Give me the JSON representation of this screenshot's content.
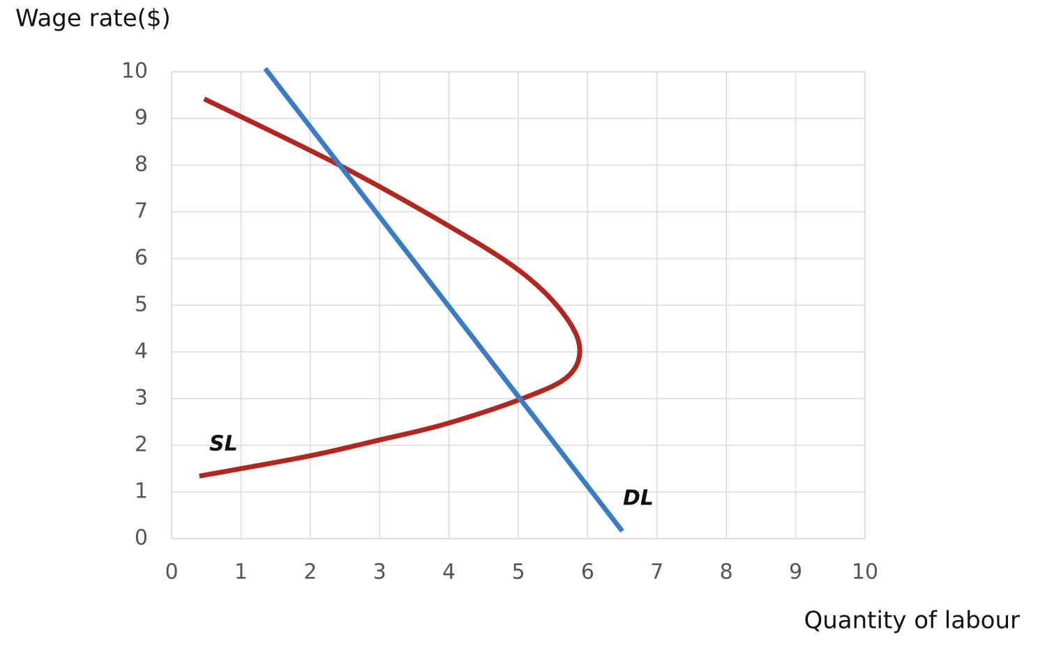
{
  "chart_data": {
    "type": "line",
    "y_label": "Wage rate($)",
    "x_label": "Quantity of labour",
    "xlim": [
      0,
      10
    ],
    "ylim": [
      0,
      10
    ],
    "xticks": [
      0,
      1,
      2,
      3,
      4,
      5,
      6,
      7,
      8,
      9,
      10
    ],
    "yticks": [
      0,
      1,
      2,
      3,
      4,
      5,
      6,
      7,
      8,
      9,
      10
    ],
    "grid": true,
    "series": [
      {
        "name": "SL",
        "color": "#b3261e",
        "x": [
          0.47,
          2.42,
          3.96,
          4.97,
          5.57,
          5.88,
          5.72,
          5.04,
          3.96,
          2.96,
          1.95,
          0.4
        ],
        "values": [
          9.42,
          8.0,
          6.73,
          5.79,
          4.97,
          4.15,
          3.48,
          2.99,
          2.46,
          2.1,
          1.76,
          1.34
        ]
      },
      {
        "name": "DL",
        "color": "#3a7cc4",
        "x": [
          1.35,
          6.5
        ],
        "values": [
          10.07,
          0.16
        ]
      }
    ]
  }
}
